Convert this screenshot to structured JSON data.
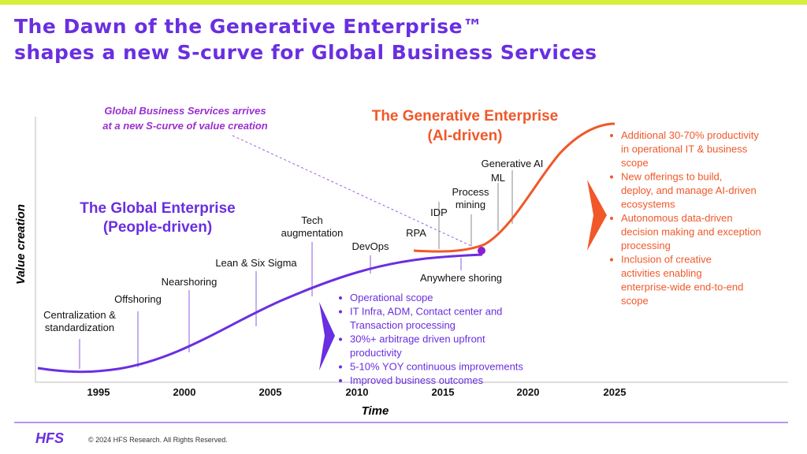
{
  "header": {
    "title_line1": "The Dawn of the Generative Enterprise™",
    "title_line2": "shapes a new S-curve for Global Business Services"
  },
  "annotation": {
    "line1": "Global Business Services arrives",
    "line2": "at a new S-curve of value creation"
  },
  "global_enterprise": {
    "line1": "The Global Enterprise",
    "line2": "(People-driven)"
  },
  "generative_enterprise": {
    "line1": "The Generative Enterprise",
    "line2": "(AI-driven)"
  },
  "milestones": [
    [
      "Centralization &",
      "standardization"
    ],
    [
      "Offshoring"
    ],
    [
      "Nearshoring"
    ],
    [
      "Lean & Six Sigma"
    ],
    [
      "Tech",
      "augmentation"
    ],
    [
      "DevOps"
    ],
    [
      "Anywhere shoring"
    ],
    [
      "RPA"
    ],
    [
      "IDP"
    ],
    [
      "Process",
      "mining"
    ],
    [
      "ML"
    ],
    [
      "Generative AI"
    ]
  ],
  "axes": {
    "y_label": "Value creation",
    "x_label": "Time",
    "years": [
      "1995",
      "2000",
      "2005",
      "2010",
      "2015",
      "2020",
      "2025"
    ]
  },
  "global_bullets": [
    "Operational scope",
    "IT Infra, ADM, Contact center and Transaction processing",
    "30%+ arbitrage driven upfront productivity",
    "5-10% YOY continuous improvements",
    "Improved business outcomes"
  ],
  "generative_bullets": [
    "Additional 30-70% productivity in operational IT & business scope",
    "New offerings to build, deploy, and manage AI-driven ecosystems",
    "Autonomous data-driven decision making and exception processing",
    "Inclusion of creative activities enabling enterprise-wide end-to-end scope"
  ],
  "footer": {
    "logo": "HFS",
    "copyright": "© 2024 HFS Research. All Rights Reserved."
  }
}
